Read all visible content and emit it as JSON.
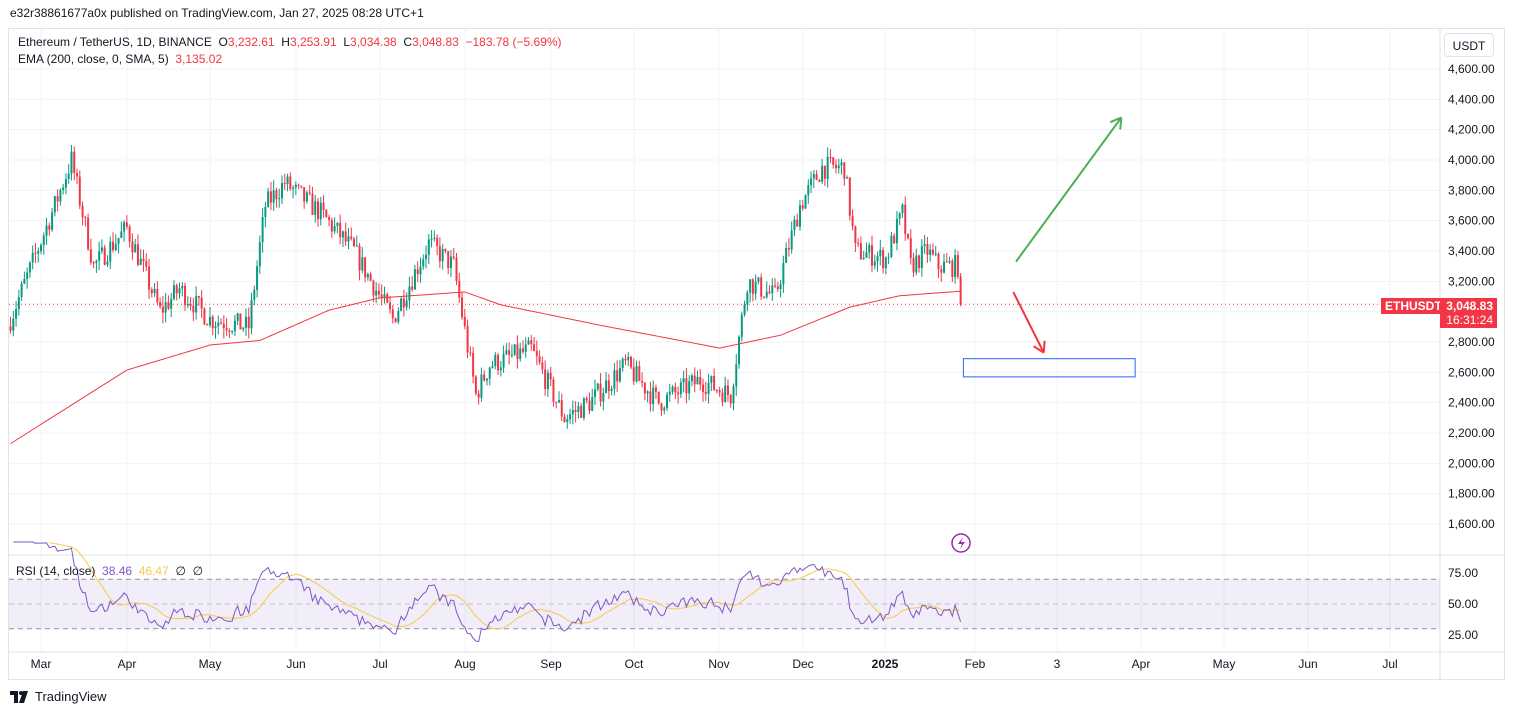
{
  "header": {
    "published": "e32r38861677a0x published on TradingView.com, Jan 27, 2025 08:28 UTC+1"
  },
  "legend": {
    "symbol": "Ethereum / TetherUS, 1D, BINANCE",
    "o_label": "O",
    "o": "3,232.61",
    "h_label": "H",
    "h": "3,253.91",
    "l_label": "L",
    "l": "3,034.38",
    "c_label": "C",
    "c": "3,048.83",
    "change": "−183.78 (−5.69%)",
    "ema": "EMA (200, close, 0, SMA, 5)",
    "ema_value": "3,135.02"
  },
  "rsi_legend": {
    "label": "RSI (14, close)",
    "rsi": "38.46",
    "ma": "46.47",
    "n1": "∅",
    "n2": "∅"
  },
  "price_axis": {
    "unit": "USDT",
    "ticks": [
      "4,600.00",
      "4,400.00",
      "4,200.00",
      "4,000.00",
      "3,800.00",
      "3,600.00",
      "3,400.00",
      "3,200.00",
      "2,800.00",
      "2,600.00",
      "2,400.00",
      "2,200.00",
      "2,000.00",
      "1,800.00",
      "1,600.00"
    ],
    "symbol_label": "ETHUSDT",
    "last_price": "3,048.83",
    "countdown": "16:31:24"
  },
  "rsi_axis": {
    "ticks": [
      "75.00",
      "50.00",
      "25.00"
    ]
  },
  "time_axis": {
    "ticks": [
      "Mar",
      "Apr",
      "May",
      "Jun",
      "Jul",
      "Aug",
      "Sep",
      "Oct",
      "Nov",
      "Dec",
      "2025",
      "Feb",
      "3",
      "Apr",
      "May",
      "Jun",
      "Jul"
    ]
  },
  "footer": {
    "brand": "TradingView"
  },
  "colors": {
    "up": "#089981",
    "down": "#f23645",
    "ema": "#f23645",
    "rsi": "#7e57c2",
    "rsi_ma": "#f7c948",
    "box": "#2962ff",
    "arrow_up": "#4caf50",
    "arrow_down": "#f23645"
  },
  "chart_data": {
    "type": "candlestick",
    "title": "Ethereum / TetherUS, 1D, BINANCE",
    "ylim": [
      1500,
      4700
    ],
    "day_origin": "2024-03-01",
    "close_anchors": [
      [
        -11,
        2950
      ],
      [
        5,
        3700
      ],
      [
        11,
        4000
      ],
      [
        19,
        3300
      ],
      [
        31,
        3550
      ],
      [
        43,
        3000
      ],
      [
        50,
        3150
      ],
      [
        61,
        2950
      ],
      [
        75,
        2900
      ],
      [
        81,
        3700
      ],
      [
        88,
        3850
      ],
      [
        101,
        3650
      ],
      [
        113,
        3400
      ],
      [
        127,
        2950
      ],
      [
        140,
        3450
      ],
      [
        149,
        3300
      ],
      [
        157,
        2450
      ],
      [
        162,
        2650
      ],
      [
        177,
        2750
      ],
      [
        189,
        2300
      ],
      [
        198,
        2400
      ],
      [
        211,
        2650
      ],
      [
        223,
        2400
      ],
      [
        238,
        2550
      ],
      [
        249,
        2450
      ],
      [
        255,
        3200
      ],
      [
        265,
        3100
      ],
      [
        274,
        3700
      ],
      [
        282,
        3950
      ],
      [
        290,
        3950
      ],
      [
        294,
        3400
      ],
      [
        305,
        3350
      ],
      [
        311,
        3650
      ],
      [
        314,
        3300
      ],
      [
        320,
        3400
      ],
      [
        324,
        3300
      ],
      [
        331,
        3300
      ],
      [
        332,
        3048.83
      ]
    ],
    "ema_anchors": [
      [
        -11,
        2130
      ],
      [
        31,
        2615
      ],
      [
        61,
        2780
      ],
      [
        79,
        2810
      ],
      [
        104,
        3010
      ],
      [
        122,
        3090
      ],
      [
        153,
        3130
      ],
      [
        166,
        3045
      ],
      [
        202,
        2910
      ],
      [
        245,
        2760
      ],
      [
        267,
        2845
      ],
      [
        292,
        3030
      ],
      [
        310,
        3105
      ],
      [
        332,
        3135.02
      ]
    ],
    "projection": {
      "up_arrow": [
        [
          352,
          3330
        ],
        [
          390,
          4280
        ]
      ],
      "down_arrow": [
        [
          351,
          3130
        ],
        [
          362,
          2730
        ]
      ],
      "target_zone": [
        2570,
        2690
      ],
      "zone_days": [
        333,
        395
      ]
    }
  }
}
